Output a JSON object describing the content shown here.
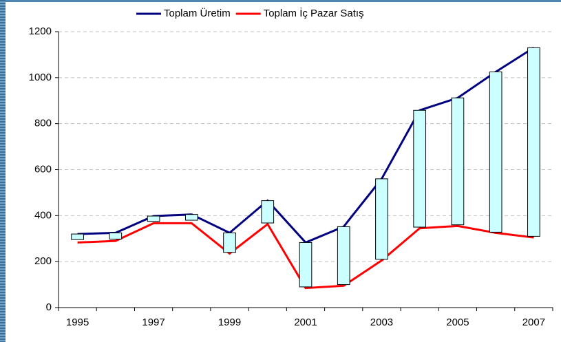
{
  "chart_data": {
    "type": "line",
    "categories": [
      "1995",
      null,
      "1997",
      null,
      "1999",
      null,
      "2001",
      null,
      "2003",
      null,
      "2005",
      null,
      "2007"
    ],
    "series": [
      {
        "name": "Toplam Üretim",
        "color": "#000080",
        "values": [
          320,
          325,
          398,
          405,
          325,
          465,
          283,
          352,
          560,
          858,
          912,
          1025,
          1130
        ]
      },
      {
        "name": "Toplam İç Pazar Satış",
        "color": "#ff0000",
        "values": [
          283,
          290,
          367,
          367,
          235,
          363,
          85,
          95,
          205,
          345,
          355,
          325,
          305
        ]
      }
    ],
    "bars": {
      "color": "#ccffff",
      "low": [
        296,
        298,
        375,
        380,
        240,
        368,
        90,
        100,
        210,
        350,
        360,
        328,
        310
      ],
      "high": [
        320,
        325,
        398,
        405,
        325,
        465,
        283,
        352,
        560,
        858,
        912,
        1025,
        1130
      ]
    },
    "ylim": [
      0,
      1200
    ],
    "yticks": [
      0,
      200,
      400,
      600,
      800,
      1000,
      1200
    ],
    "grid": true,
    "legend": "top"
  }
}
